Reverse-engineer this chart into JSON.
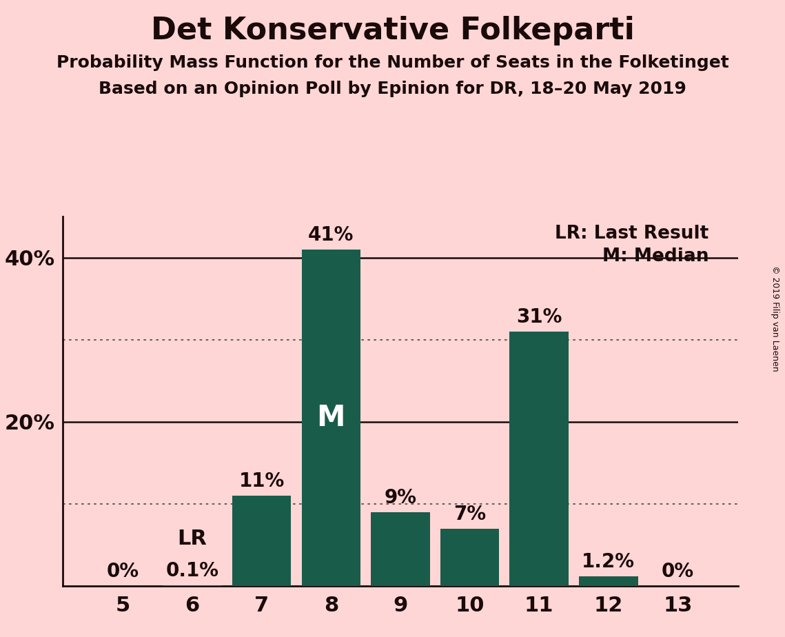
{
  "title": "Det Konservative Folkeparti",
  "subtitle1": "Probability Mass Function for the Number of Seats in the Folketinget",
  "subtitle2": "Based on an Opinion Poll by Epinion for DR, 18–20 May 2019",
  "copyright": "© 2019 Filip van Laenen",
  "categories": [
    5,
    6,
    7,
    8,
    9,
    10,
    11,
    12,
    13
  ],
  "values": [
    0.0,
    0.1,
    11.0,
    41.0,
    9.0,
    7.0,
    31.0,
    1.2,
    0.0
  ],
  "labels": [
    "0%",
    "0.1%",
    "11%",
    "41%",
    "9%",
    "7%",
    "31%",
    "1.2%",
    "0%"
  ],
  "bar_color": "#1a5c4a",
  "background_color": "#ffd6d6",
  "median_bar_idx": 3,
  "last_result_bar_idx": 1,
  "median_label": "M",
  "last_result_label": "LR",
  "ylim": [
    0,
    45
  ],
  "solid_lines": [
    20,
    40
  ],
  "dotted_lines": [
    10,
    30
  ],
  "ytick_positions": [
    20,
    40
  ],
  "ytick_labels": [
    "20%",
    "40%"
  ],
  "title_fontsize": 32,
  "subtitle_fontsize": 18,
  "label_fontsize": 20,
  "tick_fontsize": 22,
  "legend_fontsize": 19,
  "median_text_fontsize": 30,
  "lr_text_fontsize": 22,
  "copyright_fontsize": 9
}
